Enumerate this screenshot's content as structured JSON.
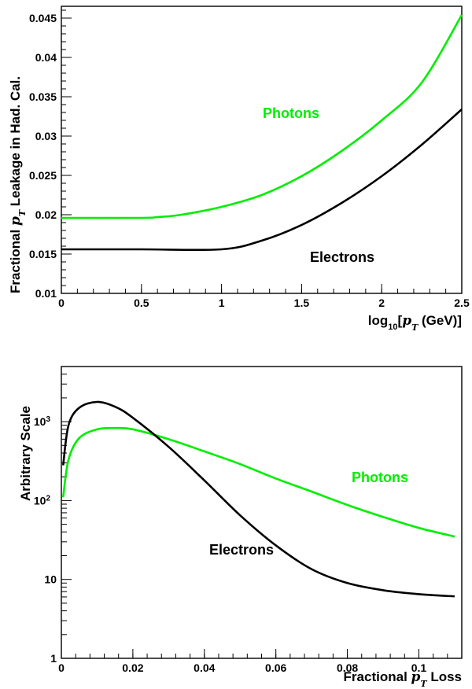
{
  "chart_data": [
    {
      "type": "line",
      "title": "",
      "xlabel": "log10[pT (GeV)]",
      "ylabel": "Fractional pT Leakage in Had. Cal.",
      "xlim": [
        0,
        2.5
      ],
      "ylim": [
        0.01,
        0.0465
      ],
      "x_ticks": [
        "0",
        "0.5",
        "1",
        "1.5",
        "2",
        "2.5"
      ],
      "y_ticks": [
        "0.01",
        "0.015",
        "0.02",
        "0.025",
        "0.03",
        "0.035",
        "0.04",
        "0.045"
      ],
      "grid": false,
      "series": [
        {
          "name": "Photons",
          "color": "#00ee00",
          "x": [
            0,
            0.5,
            0.6,
            0.75,
            1.0,
            1.25,
            1.5,
            1.75,
            2.0,
            2.25,
            2.5
          ],
          "y": [
            0.0196,
            0.0196,
            0.0197,
            0.02,
            0.021,
            0.0225,
            0.0249,
            0.0281,
            0.032,
            0.0368,
            0.0454
          ]
        },
        {
          "name": "Electrons",
          "color": "#000000",
          "x": [
            0,
            0.5,
            1.0,
            1.25,
            1.5,
            1.75,
            2.0,
            2.25,
            2.5
          ],
          "y": [
            0.0156,
            0.0156,
            0.0156,
            0.0167,
            0.0187,
            0.0215,
            0.0249,
            0.0289,
            0.0334
          ]
        }
      ]
    },
    {
      "type": "line",
      "title": "",
      "xlabel": "Fractional pT Loss",
      "ylabel": "Arbitrary Scale",
      "xlim": [
        0,
        0.112
      ],
      "ylim": [
        1,
        5000
      ],
      "y_scale": "log",
      "x_ticks": [
        "0",
        "0.02",
        "0.04",
        "0.06",
        "0.08",
        "0.1"
      ],
      "y_ticks": [
        "1",
        "10",
        "10^2",
        "10^3"
      ],
      "grid": false,
      "series": [
        {
          "name": "Photons",
          "color": "#00ee00",
          "x": [
            0.0005,
            0.002,
            0.005,
            0.01,
            0.015,
            0.02,
            0.03,
            0.04,
            0.05,
            0.06,
            0.07,
            0.08,
            0.09,
            0.1,
            0.11
          ],
          "y": [
            110,
            330,
            620,
            800,
            830,
            800,
            600,
            420,
            290,
            190,
            130,
            88,
            62,
            45,
            35
          ]
        },
        {
          "name": "Electrons",
          "color": "#000000",
          "x": [
            0.0005,
            0.002,
            0.005,
            0.01,
            0.015,
            0.02,
            0.03,
            0.04,
            0.05,
            0.06,
            0.07,
            0.08,
            0.09,
            0.1,
            0.11
          ],
          "y": [
            280,
            900,
            1500,
            1780,
            1550,
            1120,
            480,
            180,
            65,
            27,
            13.5,
            9,
            7.3,
            6.5,
            6.1
          ]
        }
      ]
    }
  ]
}
